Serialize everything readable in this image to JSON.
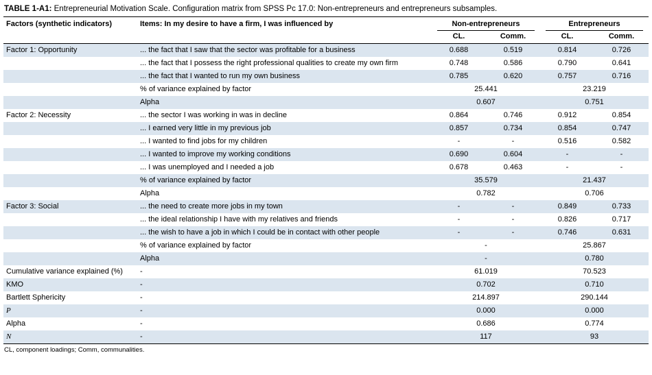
{
  "title": {
    "bold": "TABLE 1-A1:",
    "rest": " Entrepreneurial Motivation Scale. Configuration matrix from SPSS Pc 17.0: Non-entrepreneurs and entrepreneurs subsamples."
  },
  "header": {
    "factors": "Factors (synthetic indicators)",
    "items": "Items: In my desire to have a firm, I was influenced by",
    "groups": [
      "Non-entrepreneurs",
      "Entrepreneurs"
    ],
    "subcols": [
      "CL.",
      "Comm.",
      "CL.",
      "Comm."
    ]
  },
  "rows": [
    {
      "type": "item",
      "factor": "Factor 1: Opportunity",
      "item": "... the fact that I saw that the sector was profitable for a business",
      "values": [
        "0.688",
        "0.519",
        "0.814",
        "0.726"
      ]
    },
    {
      "type": "item",
      "factor": "",
      "item": "... the fact that I possess the right professional qualities to create my own firm",
      "values": [
        "0.748",
        "0.586",
        "0.790",
        "0.641"
      ]
    },
    {
      "type": "item",
      "factor": "",
      "item": "... the fact that I wanted to run my own business",
      "values": [
        "0.785",
        "0.620",
        "0.757",
        "0.716"
      ]
    },
    {
      "type": "span",
      "factor": "",
      "item": "% of variance explained by factor",
      "values": [
        "25.441",
        "23.219"
      ]
    },
    {
      "type": "span",
      "factor": "",
      "item": "Alpha",
      "values": [
        "0.607",
        "0.751"
      ]
    },
    {
      "type": "item",
      "factor": "Factor 2: Necessity",
      "item": "... the sector I was working in was in decline",
      "values": [
        "0.864",
        "0.746",
        "0.912",
        "0.854"
      ]
    },
    {
      "type": "item",
      "factor": "",
      "item": "... I earned very little in my previous job",
      "values": [
        "0.857",
        "0.734",
        "0.854",
        "0.747"
      ]
    },
    {
      "type": "item",
      "factor": "",
      "item": "... I wanted to find jobs for my children",
      "values": [
        "-",
        "-",
        "0.516",
        "0.582"
      ]
    },
    {
      "type": "item",
      "factor": "",
      "item": "... I wanted to improve my working conditions",
      "values": [
        "0.690",
        "0.604",
        "-",
        "-"
      ]
    },
    {
      "type": "item",
      "factor": "",
      "item": "... I was unemployed and I needed a job",
      "values": [
        "0.678",
        "0.463",
        "-",
        "-"
      ]
    },
    {
      "type": "span",
      "factor": "",
      "item": "% of variance explained by factor",
      "values": [
        "35.579",
        "21.437"
      ]
    },
    {
      "type": "span",
      "factor": "",
      "item": "Alpha",
      "values": [
        "0.782",
        "0.706"
      ]
    },
    {
      "type": "item",
      "factor": "Factor 3: Social",
      "item": "... the need to create more jobs in my town",
      "values": [
        "-",
        "-",
        "0.849",
        "0.733"
      ]
    },
    {
      "type": "item",
      "factor": "",
      "item": "... the ideal relationship I have with my relatives and friends",
      "values": [
        "-",
        "-",
        "0.826",
        "0.717"
      ]
    },
    {
      "type": "item",
      "factor": "",
      "item": "... the wish to have a job in which I could be in contact with other people",
      "values": [
        "-",
        "-",
        "0.746",
        "0.631"
      ]
    },
    {
      "type": "span",
      "factor": "",
      "item": "% of variance explained by factor",
      "values": [
        "-",
        "25.867"
      ]
    },
    {
      "type": "span",
      "factor": "",
      "item": "Alpha",
      "values": [
        "-",
        "0.780"
      ]
    },
    {
      "type": "span",
      "factor": "Cumulative variance explained (%)",
      "item": "-",
      "values": [
        "61.019",
        "70.523"
      ]
    },
    {
      "type": "span",
      "factor": "KMO",
      "item": "-",
      "values": [
        "0.702",
        "0.710"
      ]
    },
    {
      "type": "span",
      "factor": "Bartlett Sphericity",
      "item": "-",
      "values": [
        "214.897",
        "290.144"
      ]
    },
    {
      "type": "span",
      "factor": "P",
      "italic": true,
      "item": "-",
      "values": [
        "0.000",
        "0.000"
      ]
    },
    {
      "type": "span",
      "factor": "Alpha",
      "item": "-",
      "values": [
        "0.686",
        "0.774"
      ]
    },
    {
      "type": "span",
      "factor": "N",
      "italic": true,
      "item": "-",
      "values": [
        "117",
        "93"
      ]
    }
  ],
  "footnote": "CL, component loadings; Comm, communalities."
}
